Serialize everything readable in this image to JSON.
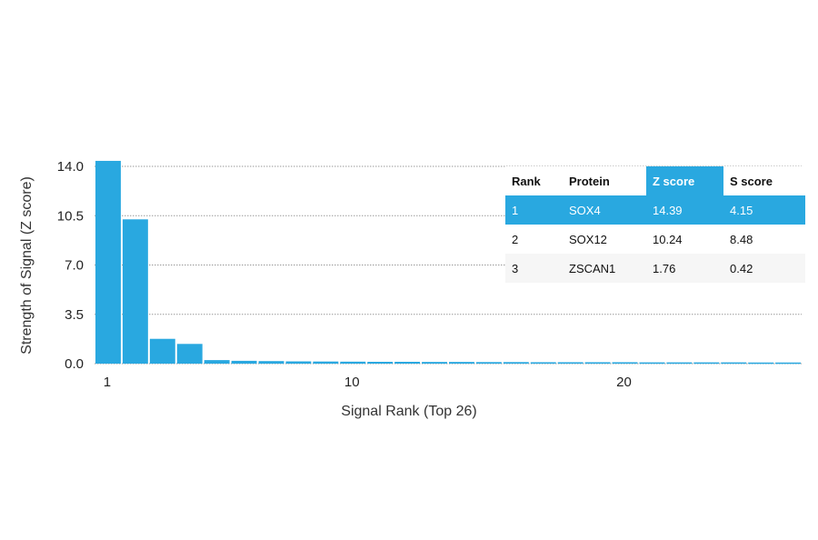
{
  "chart_data": {
    "type": "bar",
    "xlabel": "Signal Rank (Top 26)",
    "ylabel": "Strength of Signal (Z score)",
    "ylim": [
      0,
      14.0
    ],
    "yticks": [
      "0.0",
      "3.5",
      "7.0",
      "10.5",
      "14.0"
    ],
    "xticks": [
      1,
      10,
      20
    ],
    "x": [
      1,
      2,
      3,
      4,
      5,
      6,
      7,
      8,
      9,
      10,
      11,
      12,
      13,
      14,
      15,
      16,
      17,
      18,
      19,
      20,
      21,
      22,
      23,
      24,
      25,
      26
    ],
    "values": [
      14.39,
      10.24,
      1.76,
      1.4,
      0.25,
      0.2,
      0.18,
      0.16,
      0.15,
      0.14,
      0.13,
      0.13,
      0.12,
      0.12,
      0.11,
      0.11,
      0.1,
      0.1,
      0.1,
      0.1,
      0.09,
      0.09,
      0.09,
      0.09,
      0.08,
      0.08
    ],
    "grid": true,
    "colors": {
      "bar": "#29a8e0",
      "highlight": "#29a8e0",
      "grid": "#999999"
    }
  },
  "table": {
    "headers": [
      "Rank",
      "Protein",
      "Z score",
      "S score"
    ],
    "highlight_header": 2,
    "rows": [
      {
        "rank": "1",
        "protein": "SOX4",
        "z": "14.39",
        "s": "4.15",
        "highlight": true
      },
      {
        "rank": "2",
        "protein": "SOX12",
        "z": "10.24",
        "s": "8.48",
        "highlight": false
      },
      {
        "rank": "3",
        "protein": "ZSCAN1",
        "z": "1.76",
        "s": "0.42",
        "highlight": false
      }
    ]
  }
}
